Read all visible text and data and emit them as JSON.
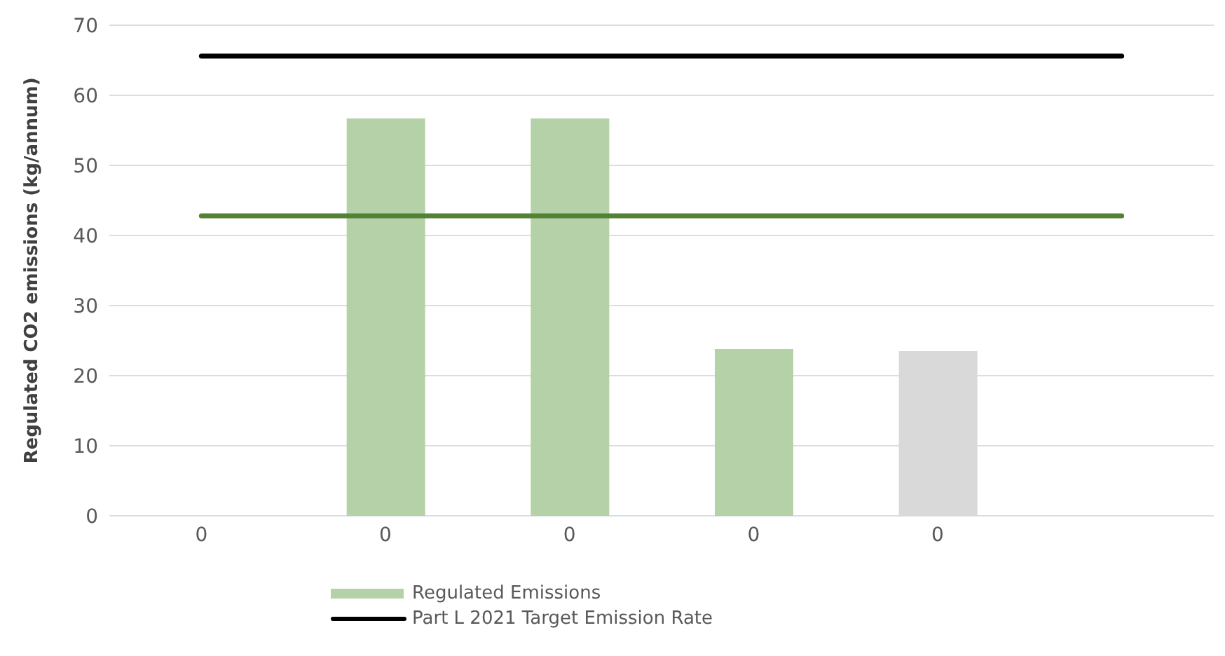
{
  "chart_data": {
    "type": "bar",
    "ylabel": "Regulated CO2 emissions (kg/annum)",
    "categories": [
      "0",
      "0",
      "0",
      "0",
      "0",
      null
    ],
    "series": [
      {
        "name": "Regulated Emissions",
        "color": "#b5d1a8",
        "colors": [
          "#b5d1a8",
          "#b5d1a8",
          "#b5d1a8",
          "#b5d1a8",
          "#d9d9d9",
          "#b5d1a8"
        ],
        "values": [
          null,
          56.7,
          56.7,
          23.8,
          23.5,
          null
        ]
      },
      {
        "type": "line",
        "name": "Part L 2021 Target Emission Rate",
        "color": "#000000",
        "values": [
          65.6,
          65.6,
          65.6,
          65.6,
          65.6,
          65.6
        ]
      },
      {
        "type": "line",
        "color": "#548235",
        "values": [
          42.8,
          42.8,
          42.8,
          42.8,
          42.8,
          42.8
        ]
      }
    ],
    "ylim": [
      0,
      70
    ],
    "yticks": [
      0,
      10,
      20,
      30,
      40,
      50,
      60,
      70
    ],
    "grid": "y",
    "legend": "bottom",
    "marker": "none"
  }
}
